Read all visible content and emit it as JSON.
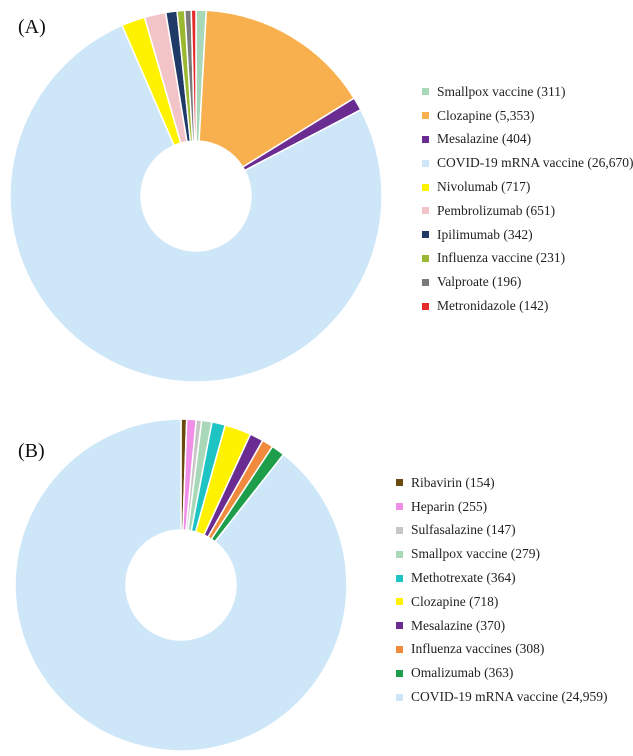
{
  "chart_data": [
    {
      "type": "pie",
      "panel_label": "(A)",
      "title": "",
      "legend_position": "right",
      "slices": [
        {
          "label": "Smallpox vaccine (311)",
          "name": "Smallpox vaccine",
          "value": 311,
          "color": "#a8d8b8"
        },
        {
          "label": "Clozapine (5,353)",
          "name": "Clozapine",
          "value": 5353,
          "color": "#f8b04e"
        },
        {
          "label": "Mesalazine (404)",
          "name": "Mesalazine",
          "value": 404,
          "color": "#6a2c91"
        },
        {
          "label": "COVID-19 mRNA vaccine (26,670)",
          "name": "COVID-19 mRNA vaccine",
          "value": 26670,
          "color": "#cde7f9"
        },
        {
          "label": "Nivolumab (717)",
          "name": "Nivolumab",
          "value": 717,
          "color": "#fff200"
        },
        {
          "label": "Pembrolizumab (651)",
          "name": "Pembrolizumab",
          "value": 651,
          "color": "#f2c4c8"
        },
        {
          "label": "Ipilimumab (342)",
          "name": "Ipilimumab",
          "value": 342,
          "color": "#1f3a66"
        },
        {
          "label": "Influenza vaccine (231)",
          "name": "Influenza vaccine",
          "value": 231,
          "color": "#9ab832"
        },
        {
          "label": "Valproate (196)",
          "name": "Valproate",
          "value": 196,
          "color": "#7a7a7a"
        },
        {
          "label": "Metronidazole (142)",
          "name": "Metronidazole",
          "value": 142,
          "color": "#e42a2a"
        }
      ]
    },
    {
      "type": "pie",
      "panel_label": "(B)",
      "title": "",
      "legend_position": "right",
      "slices": [
        {
          "label": "Ribavirin (154)",
          "name": "Ribavirin",
          "value": 154,
          "color": "#6b4a10"
        },
        {
          "label": "Heparin (255)",
          "name": "Heparin",
          "value": 255,
          "color": "#f08ee8"
        },
        {
          "label": "Sulfasalazine (147)",
          "name": "Sulfasalazine",
          "value": 147,
          "color": "#c6c6c6"
        },
        {
          "label": "Smallpox vaccine (279)",
          "name": "Smallpox vaccine",
          "value": 279,
          "color": "#a8d8b8"
        },
        {
          "label": "Methotrexate (364)",
          "name": "Methotrexate",
          "value": 364,
          "color": "#1ec4c4"
        },
        {
          "label": "Clozapine (718)",
          "name": "Clozapine",
          "value": 718,
          "color": "#fff200"
        },
        {
          "label": "Mesalazine (370)",
          "name": "Mesalazine",
          "value": 370,
          "color": "#6a2c91"
        },
        {
          "label": "Influenza vaccines (308)",
          "name": "Influenza vaccines",
          "value": 308,
          "color": "#f08a3c"
        },
        {
          "label": "Omalizumab (363)",
          "name": "Omalizumab",
          "value": 363,
          "color": "#1e9e4a"
        },
        {
          "label": "COVID-19 mRNA vaccine (24,959)",
          "name": "COVID-19 mRNA vaccine",
          "value": 24959,
          "color": "#cde7f9"
        }
      ]
    }
  ]
}
